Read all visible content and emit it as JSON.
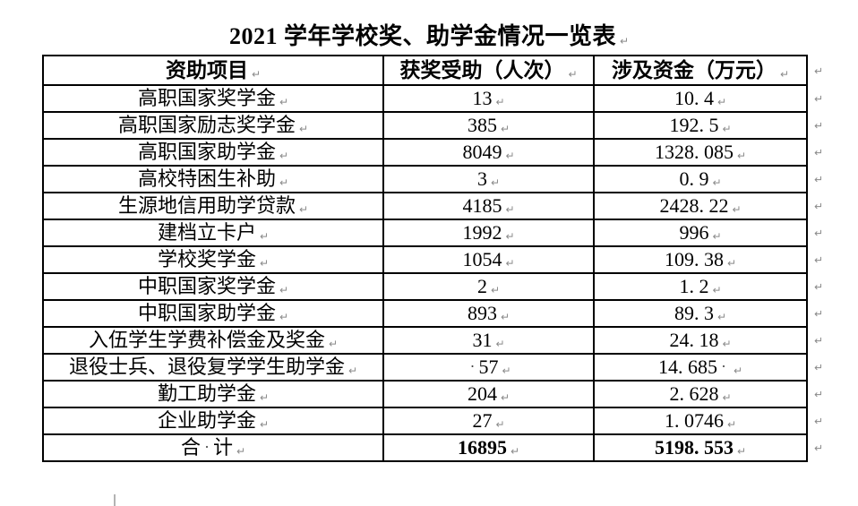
{
  "title": {
    "text": "2021 学年学校奖、助学金情况一览表"
  },
  "marks": {
    "cell_end": "↵",
    "row_end": "↵",
    "space": "·"
  },
  "table": {
    "headers": [
      "资助项目",
      "获奖受助（人次）",
      "涉及资金（万元）"
    ],
    "rows": [
      {
        "cells": [
          {
            "seg": [
              {
                "t": "高职国家奖学金"
              }
            ]
          },
          {
            "seg": [
              {
                "t": "13"
              }
            ]
          },
          {
            "seg": [
              {
                "t": "10. 4"
              }
            ]
          }
        ]
      },
      {
        "cells": [
          {
            "seg": [
              {
                "t": "高职国家励志奖学金"
              }
            ]
          },
          {
            "seg": [
              {
                "t": "385"
              }
            ]
          },
          {
            "seg": [
              {
                "t": "192. 5"
              }
            ]
          }
        ]
      },
      {
        "cells": [
          {
            "seg": [
              {
                "t": "高职国家助学金"
              }
            ]
          },
          {
            "seg": [
              {
                "t": "8049"
              }
            ]
          },
          {
            "seg": [
              {
                "t": "1328. 085"
              }
            ]
          }
        ]
      },
      {
        "cells": [
          {
            "seg": [
              {
                "t": "高校特困生补助"
              }
            ]
          },
          {
            "seg": [
              {
                "t": "3"
              }
            ]
          },
          {
            "seg": [
              {
                "t": "0. 9"
              }
            ]
          }
        ]
      },
      {
        "cells": [
          {
            "seg": [
              {
                "t": "生源地信用助学贷款"
              }
            ]
          },
          {
            "seg": [
              {
                "t": "4185"
              }
            ]
          },
          {
            "seg": [
              {
                "t": "2428. 22"
              }
            ]
          }
        ]
      },
      {
        "cells": [
          {
            "seg": [
              {
                "t": "建档立卡户"
              }
            ]
          },
          {
            "seg": [
              {
                "t": "1992"
              }
            ]
          },
          {
            "seg": [
              {
                "t": "996"
              }
            ]
          }
        ]
      },
      {
        "cells": [
          {
            "seg": [
              {
                "t": "学校奖学金"
              }
            ]
          },
          {
            "seg": [
              {
                "t": "1054"
              }
            ]
          },
          {
            "seg": [
              {
                "t": "109. 38"
              }
            ]
          }
        ]
      },
      {
        "cells": [
          {
            "seg": [
              {
                "t": "中职国家奖学金"
              }
            ]
          },
          {
            "seg": [
              {
                "t": "2"
              }
            ]
          },
          {
            "seg": [
              {
                "t": "1. 2"
              }
            ]
          }
        ]
      },
      {
        "cells": [
          {
            "seg": [
              {
                "t": "中职国家助学金"
              }
            ]
          },
          {
            "seg": [
              {
                "t": "893"
              }
            ]
          },
          {
            "seg": [
              {
                "t": "89. 3"
              }
            ]
          }
        ]
      },
      {
        "cells": [
          {
            "seg": [
              {
                "t": "入伍学生学费补偿金及奖金"
              }
            ]
          },
          {
            "seg": [
              {
                "t": "31"
              }
            ]
          },
          {
            "seg": [
              {
                "t": "24. 18"
              }
            ]
          }
        ]
      },
      {
        "cells": [
          {
            "seg": [
              {
                "t": "退役士兵、退役复学学生助学金"
              }
            ]
          },
          {
            "seg": [
              {
                "m": "·"
              },
              {
                "t": "57"
              }
            ]
          },
          {
            "seg": [
              {
                "t": "14. 685"
              },
              {
                "m": "·"
              }
            ]
          }
        ]
      },
      {
        "cells": [
          {
            "seg": [
              {
                "t": "勤工助学金"
              }
            ]
          },
          {
            "seg": [
              {
                "t": "204"
              }
            ]
          },
          {
            "seg": [
              {
                "t": "2. 628"
              }
            ]
          }
        ]
      },
      {
        "cells": [
          {
            "seg": [
              {
                "t": "企业助学金"
              }
            ]
          },
          {
            "seg": [
              {
                "t": "27"
              }
            ]
          },
          {
            "seg": [
              {
                "t": "1. 0746"
              }
            ]
          }
        ]
      },
      {
        "cells": [
          {
            "seg": [
              {
                "t": "合"
              },
              {
                "m": "·"
              },
              {
                "t": "计"
              }
            ]
          },
          {
            "seg": [
              {
                "t": "16895"
              }
            ],
            "b": true
          },
          {
            "seg": [
              {
                "t": "5198. 553"
              }
            ],
            "b": true
          }
        ]
      }
    ]
  }
}
